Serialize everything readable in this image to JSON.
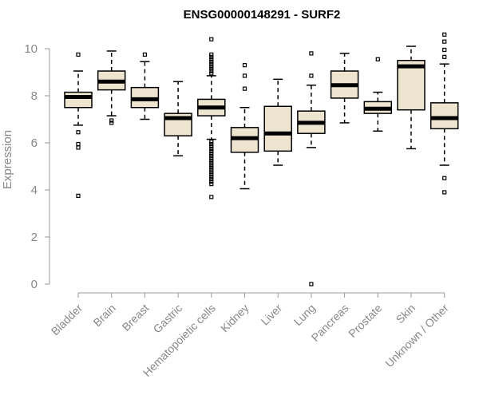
{
  "chart_data": {
    "type": "box",
    "title": "ENSG00000148291 - SURF2",
    "xlabel": "",
    "ylabel": "Expression",
    "ylim": [
      0,
      10.5
    ],
    "yticks": [
      0,
      2,
      4,
      6,
      8,
      10
    ],
    "categories": [
      "Bladder",
      "Brain",
      "Breast",
      "Gastric",
      "Hematopoietic cells",
      "Kidney",
      "Liver",
      "Lung",
      "Pancreas",
      "Prostate",
      "Skin",
      "Unknown / Other"
    ],
    "box_fill": "#ede5cf",
    "boxes": [
      {
        "name": "Bladder",
        "whisker_low": 6.75,
        "q1": 7.5,
        "median": 7.95,
        "q3": 8.15,
        "whisker_high": 9.05,
        "outliers": [
          9.75,
          6.45,
          5.95,
          5.8,
          3.75
        ]
      },
      {
        "name": "Brain",
        "whisker_low": 7.15,
        "q1": 8.25,
        "median": 8.6,
        "q3": 9.05,
        "whisker_high": 9.9,
        "outliers": [
          6.95,
          6.85
        ]
      },
      {
        "name": "Breast",
        "whisker_low": 7.0,
        "q1": 7.5,
        "median": 7.85,
        "q3": 8.35,
        "whisker_high": 9.45,
        "outliers": [
          9.75
        ]
      },
      {
        "name": "Gastric",
        "whisker_low": 5.45,
        "q1": 6.3,
        "median": 7.05,
        "q3": 7.25,
        "whisker_high": 8.6,
        "outliers": []
      },
      {
        "name": "Hematopoietic cells",
        "whisker_low": 6.15,
        "q1": 7.15,
        "median": 7.5,
        "q3": 7.85,
        "whisker_high": 8.85,
        "outliers": [
          10.4,
          9.75,
          9.65,
          9.55,
          9.45,
          9.35,
          9.25,
          9.15,
          9.05,
          8.95,
          6.05,
          5.95,
          5.85,
          5.75,
          5.65,
          5.55,
          5.45,
          5.35,
          5.25,
          5.15,
          5.05,
          4.95,
          4.85,
          4.75,
          4.65,
          4.55,
          4.45,
          4.35,
          4.25,
          3.7
        ]
      },
      {
        "name": "Kidney",
        "whisker_low": 4.05,
        "q1": 5.6,
        "median": 6.2,
        "q3": 6.65,
        "whisker_high": 7.5,
        "outliers": [
          9.3,
          8.85,
          8.3
        ]
      },
      {
        "name": "Liver",
        "whisker_low": 5.05,
        "q1": 5.65,
        "median": 6.4,
        "q3": 7.55,
        "whisker_high": 8.7,
        "outliers": []
      },
      {
        "name": "Lung",
        "whisker_low": 5.8,
        "q1": 6.4,
        "median": 6.85,
        "q3": 7.35,
        "whisker_high": 8.45,
        "outliers": [
          9.8,
          8.85,
          0.0
        ]
      },
      {
        "name": "Pancreas",
        "whisker_low": 6.85,
        "q1": 7.9,
        "median": 8.45,
        "q3": 9.05,
        "whisker_high": 9.8,
        "outliers": []
      },
      {
        "name": "Prostate",
        "whisker_low": 6.5,
        "q1": 7.25,
        "median": 7.45,
        "q3": 7.75,
        "whisker_high": 8.15,
        "outliers": [
          9.55
        ]
      },
      {
        "name": "Skin",
        "whisker_low": 5.75,
        "q1": 7.4,
        "median": 9.25,
        "q3": 9.5,
        "whisker_high": 10.1,
        "outliers": []
      },
      {
        "name": "Unknown / Other",
        "whisker_low": 5.05,
        "q1": 6.6,
        "median": 7.05,
        "q3": 7.7,
        "whisker_high": 9.35,
        "outliers": [
          10.6,
          10.3,
          9.95,
          9.65,
          4.5,
          3.9
        ]
      }
    ]
  }
}
